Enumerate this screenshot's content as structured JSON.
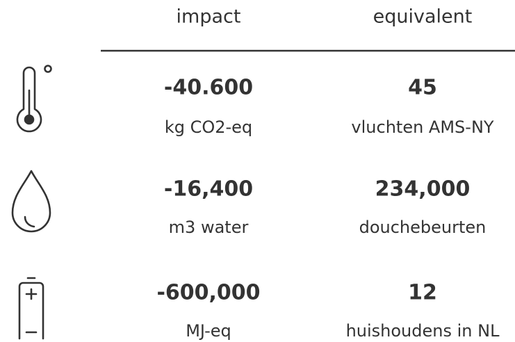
{
  "header": {
    "impact": "impact",
    "equivalent": "equivalent"
  },
  "rows": [
    {
      "impact": "-40.600",
      "impact_unit": "kg CO2-eq",
      "equivalent": "45",
      "equivalent_unit": "vluchten AMS-NY"
    },
    {
      "impact": "-16,400",
      "impact_unit": "m3 water",
      "equivalent": "234,000",
      "equivalent_unit": "douchebeurten"
    },
    {
      "impact": "-600,000",
      "impact_unit": "MJ-eq",
      "equivalent": "12",
      "equivalent_unit": "huishoudens in NL"
    }
  ]
}
